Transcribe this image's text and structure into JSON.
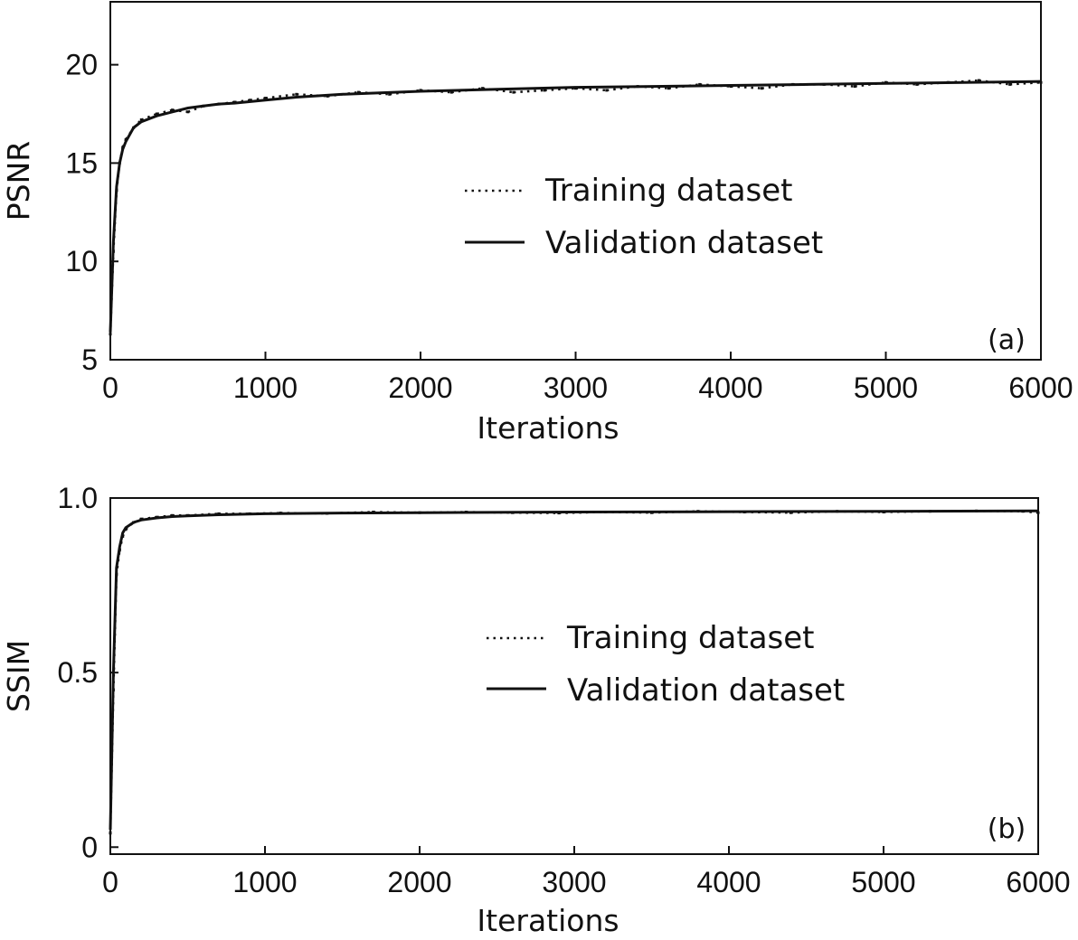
{
  "chart_data": [
    {
      "type": "line",
      "panel_label": "(a)",
      "xlabel": "Iterations",
      "ylabel": "PSNR",
      "xlim": [
        0,
        6000
      ],
      "ylim": [
        5,
        23.2
      ],
      "xticks": [
        0,
        1000,
        2000,
        3000,
        4000,
        5000,
        6000
      ],
      "xtick_labels": [
        "0",
        "1000",
        "2000",
        "3000",
        "4000",
        "5000",
        "6000"
      ],
      "yticks": [
        5,
        10,
        15,
        20
      ],
      "ytick_labels": [
        "5",
        "10",
        "15",
        "20"
      ],
      "grid": false,
      "legend_position": "center",
      "series": [
        {
          "name": "Training dataset",
          "style": "dotted",
          "color": "#111111",
          "x": [
            0,
            20,
            40,
            60,
            80,
            100,
            150,
            200,
            300,
            400,
            500,
            600,
            700,
            800,
            900,
            1000,
            1200,
            1400,
            1600,
            1800,
            2000,
            2200,
            2400,
            2600,
            2800,
            3000,
            3200,
            3400,
            3600,
            3800,
            4000,
            4200,
            4400,
            4600,
            4800,
            5000,
            5200,
            5400,
            5600,
            5800,
            6000
          ],
          "y": [
            6.3,
            10.5,
            13.6,
            15.0,
            15.8,
            16.2,
            16.8,
            17.2,
            17.5,
            17.7,
            17.6,
            17.9,
            18.0,
            18.1,
            18.2,
            18.3,
            18.5,
            18.4,
            18.6,
            18.5,
            18.7,
            18.6,
            18.8,
            18.6,
            18.7,
            18.8,
            18.7,
            18.9,
            18.8,
            19.0,
            18.9,
            18.8,
            19.0,
            19.0,
            18.9,
            19.1,
            19.0,
            19.1,
            19.2,
            19.0,
            19.1
          ]
        },
        {
          "name": "Validation dataset",
          "style": "solid",
          "color": "#111111",
          "x": [
            0,
            20,
            40,
            60,
            80,
            100,
            150,
            200,
            300,
            400,
            500,
            600,
            700,
            800,
            1000,
            1200,
            1500,
            2000,
            2500,
            3000,
            3500,
            4000,
            4500,
            5000,
            5500,
            6000
          ],
          "y": [
            6.4,
            11.0,
            13.8,
            15.0,
            15.7,
            16.1,
            16.8,
            17.1,
            17.4,
            17.6,
            17.8,
            17.9,
            18.0,
            18.05,
            18.2,
            18.35,
            18.5,
            18.65,
            18.75,
            18.85,
            18.9,
            18.95,
            19.0,
            19.05,
            19.1,
            19.15
          ]
        }
      ]
    },
    {
      "type": "line",
      "panel_label": "(b)",
      "xlabel": "Iterations",
      "ylabel": "SSIM",
      "xlim": [
        0,
        6000
      ],
      "ylim": [
        -0.02,
        1.0
      ],
      "xticks": [
        0,
        1000,
        2000,
        3000,
        4000,
        5000,
        6000
      ],
      "xtick_labels": [
        "0",
        "1000",
        "2000",
        "3000",
        "4000",
        "5000",
        "6000"
      ],
      "yticks": [
        0,
        0.5,
        1.0
      ],
      "ytick_labels": [
        "0",
        "0.5",
        "1.0"
      ],
      "grid": false,
      "legend_position": "center",
      "series": [
        {
          "name": "Training dataset",
          "style": "dotted",
          "color": "#111111",
          "x": [
            0,
            20,
            40,
            60,
            80,
            100,
            150,
            200,
            300,
            400,
            500,
            700,
            900,
            1100,
            1400,
            1700,
            2000,
            2300,
            2600,
            2900,
            3200,
            3500,
            3800,
            4100,
            4400,
            4700,
            5000,
            5300,
            5600,
            5900,
            6000
          ],
          "y": [
            0.04,
            0.45,
            0.78,
            0.85,
            0.89,
            0.91,
            0.93,
            0.94,
            0.945,
            0.95,
            0.95,
            0.955,
            0.955,
            0.957,
            0.956,
            0.96,
            0.958,
            0.96,
            0.958,
            0.957,
            0.96,
            0.958,
            0.962,
            0.96,
            0.958,
            0.962,
            0.96,
            0.962,
            0.963,
            0.962,
            0.958
          ]
        },
        {
          "name": "Validation dataset",
          "style": "solid",
          "color": "#111111",
          "x": [
            0,
            20,
            40,
            60,
            80,
            100,
            150,
            200,
            300,
            400,
            500,
            700,
            1000,
            1500,
            2000,
            3000,
            4000,
            5000,
            6000
          ],
          "y": [
            0.05,
            0.5,
            0.8,
            0.86,
            0.9,
            0.915,
            0.93,
            0.937,
            0.943,
            0.947,
            0.949,
            0.952,
            0.955,
            0.957,
            0.958,
            0.96,
            0.961,
            0.962,
            0.963
          ]
        }
      ]
    }
  ]
}
